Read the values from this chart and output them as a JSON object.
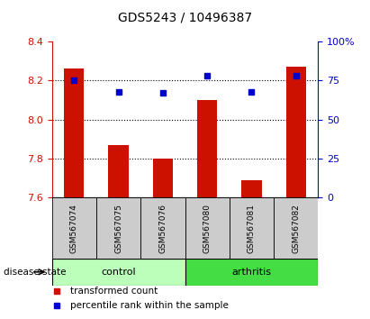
{
  "title": "GDS5243 / 10496387",
  "samples": [
    "GSM567074",
    "GSM567075",
    "GSM567076",
    "GSM567080",
    "GSM567081",
    "GSM567082"
  ],
  "transformed_counts": [
    8.26,
    7.87,
    7.8,
    8.1,
    7.69,
    8.27
  ],
  "percentile_ranks": [
    75,
    68,
    67,
    78,
    68,
    78
  ],
  "bar_bottom": 7.6,
  "ylim_left": [
    7.6,
    8.4
  ],
  "ylim_right": [
    0,
    100
  ],
  "yticks_left": [
    7.6,
    7.8,
    8.0,
    8.2,
    8.4
  ],
  "yticks_right": [
    0,
    25,
    50,
    75,
    100
  ],
  "ytick_labels_right": [
    "0",
    "25",
    "50",
    "75",
    "100%"
  ],
  "bar_color": "#cc1100",
  "square_color": "#0000cc",
  "groups": [
    {
      "label": "control",
      "indices": [
        0,
        1,
        2
      ],
      "bg_color": "#bbffbb",
      "edge_color": "#000000"
    },
    {
      "label": "arthritis",
      "indices": [
        3,
        4,
        5
      ],
      "bg_color": "#44dd44",
      "edge_color": "#000000"
    }
  ],
  "legend_items": [
    {
      "label": "transformed count",
      "color": "#cc1100"
    },
    {
      "label": "percentile rank within the sample",
      "color": "#0000cc"
    }
  ],
  "sample_box_color": "#cccccc",
  "bar_width": 0.45,
  "title_fontsize": 10,
  "sample_fontsize": 6.5,
  "group_fontsize": 8,
  "legend_fontsize": 7.5,
  "axis_fontsize": 8
}
